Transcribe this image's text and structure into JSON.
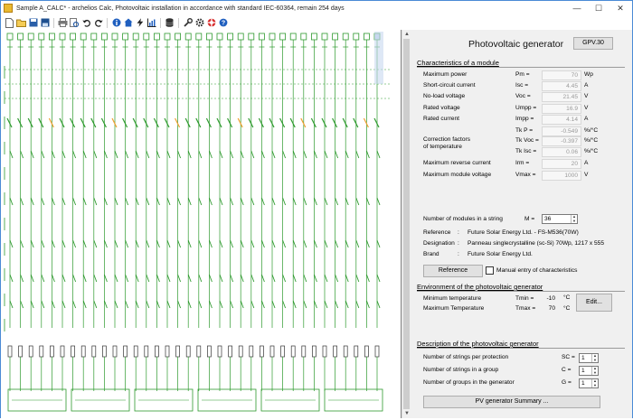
{
  "window": {
    "title": "Sample A_CALC* - archelios Calc, Photovoltaic installation in accordance with standard IEC-60364, remain 254 days",
    "controls": {
      "minimize": "—",
      "maximize": "☐",
      "close": "✕"
    }
  },
  "toolbar": {
    "icons": [
      "new-file-icon",
      "open-file-icon",
      "save-icon",
      "save-as-icon",
      "print-icon",
      "print-preview-icon",
      "undo-icon",
      "redo-icon",
      "info-icon",
      "home-icon",
      "lightning-icon",
      "chart-icon",
      "database-icon",
      "wrench-icon",
      "gear-icon",
      "help-lifebuoy-icon",
      "help-icon"
    ]
  },
  "panel": {
    "title": "Photovoltaic generator",
    "id_button": "GPV.30",
    "characteristics": {
      "heading": "Characteristics of a module",
      "rows": [
        {
          "label": "Maximum power",
          "sym": "Pm =",
          "value": "70",
          "unit": "Wp"
        },
        {
          "label": "Short-circuit current",
          "sym": "Isc =",
          "value": "4.45",
          "unit": "A"
        },
        {
          "label": "No-load voltage",
          "sym": "Voc =",
          "value": "21.45",
          "unit": "V"
        },
        {
          "label": "Rated voltage",
          "sym": "Umpp =",
          "value": "16.9",
          "unit": "V"
        },
        {
          "label": "Rated current",
          "sym": "Impp =",
          "value": "4.14",
          "unit": "A"
        }
      ],
      "correction_label_1": "Correction factors",
      "correction_label_2": "of temperature",
      "correction_rows": [
        {
          "sym": "Tk P =",
          "value": "-0.549",
          "unit": "%/°C"
        },
        {
          "sym": "Tk Voc =",
          "value": "-0.397",
          "unit": "%/°C"
        },
        {
          "sym": "Tk Isc =",
          "value": "0.06",
          "unit": "%/°C"
        }
      ],
      "rows2": [
        {
          "label": "Maximum reverse current",
          "sym": "Irm =",
          "value": "20",
          "unit": "A"
        },
        {
          "label": "Maximum module voltage",
          "sym": "Vmax =",
          "value": "1000",
          "unit": "V"
        }
      ],
      "modules_label": "Number of modules in a string",
      "modules_sym": "M =",
      "modules_value": "36",
      "reference_label": "Reference",
      "reference_value": "Future Solar Energy Ltd. - FS-M536(70W)",
      "designation_label": "Designation",
      "designation_value": "Panneau singlecrystalline (sc-Si) 70Wp, 1217 x 555",
      "brand_label": "Brand",
      "brand_value": "Future Solar Energy Ltd.",
      "colon": ":",
      "reference_button": "Reference",
      "manual_entry_label": "Manual entry of characteristics"
    },
    "environment": {
      "heading": "Environment of the photovoltaic generator",
      "min_label": "Minimum temperature",
      "min_sym": "Tmin =",
      "min_value": "-10",
      "max_label": "Maximum Temperature",
      "max_sym": "Tmax =",
      "max_value": "70",
      "unit": "°C",
      "edit_button": "Edit..."
    },
    "description": {
      "heading": "Description of the photovoltaic generator",
      "rows": [
        {
          "label": "Number of strings per protection",
          "sym": "SC =",
          "value": "1"
        },
        {
          "label": "Number of strings in a group",
          "sym": "C =",
          "value": "1"
        },
        {
          "label": "Number of groups in the generator",
          "sym": "G =",
          "value": "1"
        }
      ],
      "summary_button": "PV generator Summary ..."
    }
  },
  "diagram": {
    "highlight_color": "#f0a030",
    "line_color": "#2e9a2e"
  }
}
